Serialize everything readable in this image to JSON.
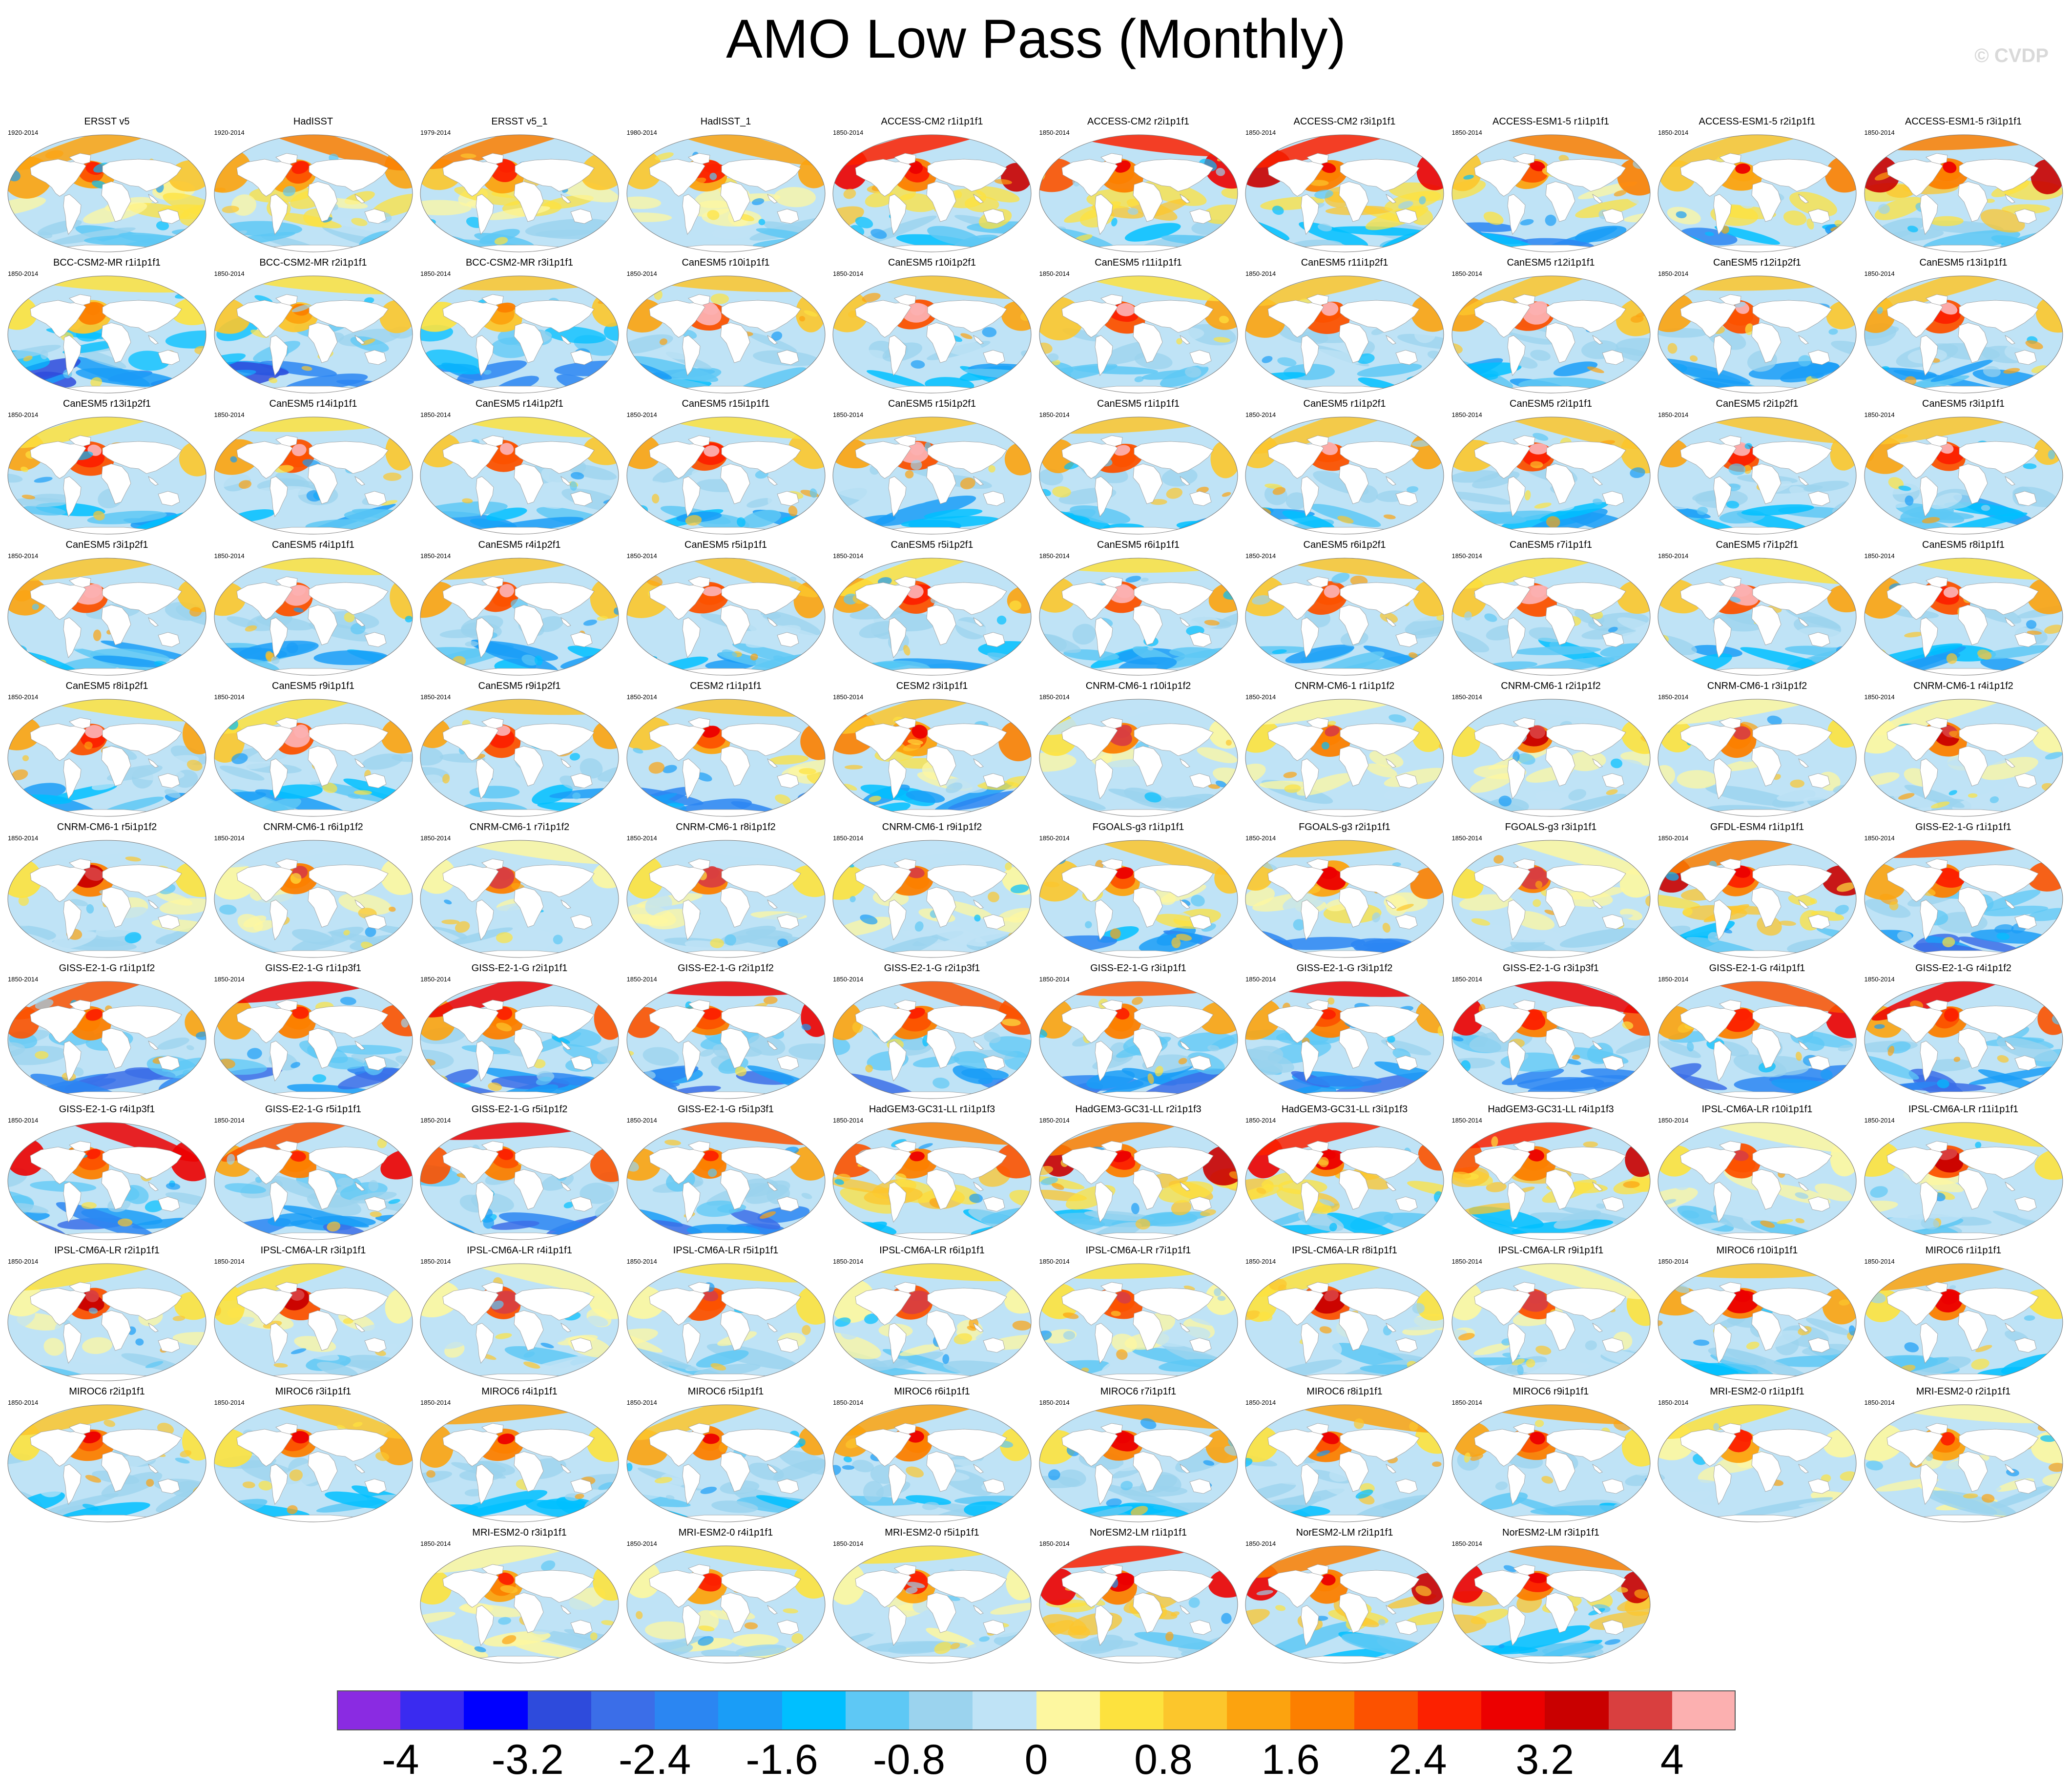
{
  "title": "AMO Low Pass (Monthly)",
  "credit": "© CVDP",
  "colors": {
    "ocean_base": "#bfe3f6",
    "land": "#ffffff",
    "coast": "#9a9a9a"
  },
  "colorbar": {
    "colors": [
      "#8a2be2",
      "#3a2bf0",
      "#0000ff",
      "#2e4bdc",
      "#3b6ee8",
      "#2b86f2",
      "#1a9df7",
      "#00bfff",
      "#5ec8f5",
      "#9bd3ee",
      "#bfe3f6",
      "#fdf7a0",
      "#fde23e",
      "#fcc62c",
      "#fca30f",
      "#fc7f00",
      "#fc5200",
      "#fc2100",
      "#ec0000",
      "#c90000",
      "#d93f3f",
      "#fcb0b0"
    ],
    "tick_labels": [
      "-4",
      "-3.2",
      "-2.4",
      "-1.6",
      "-0.8",
      "0",
      "0.8",
      "1.6",
      "2.4",
      "3.2",
      "4"
    ]
  },
  "panels": [
    {
      "title": "ERSST v5",
      "years": "1920-2014",
      "pattern": "obs"
    },
    {
      "title": "HadISST",
      "years": "1920-2014",
      "pattern": "obs"
    },
    {
      "title": "ERSST v5_1",
      "years": "1979-2014",
      "pattern": "obs"
    },
    {
      "title": "HadISST_1",
      "years": "1980-2014",
      "pattern": "obs"
    },
    {
      "title": "ACCESS-CM2 r1i1p1f1",
      "years": "1850-2014",
      "pattern": "warm"
    },
    {
      "title": "ACCESS-CM2 r2i1p1f1",
      "years": "1850-2014",
      "pattern": "warm"
    },
    {
      "title": "ACCESS-CM2 r3i1p1f1",
      "years": "1850-2014",
      "pattern": "warm"
    },
    {
      "title": "ACCESS-ESM1-5 r1i1p1f1",
      "years": "1850-2014",
      "pattern": "mixed"
    },
    {
      "title": "ACCESS-ESM1-5 r2i1p1f1",
      "years": "1850-2014",
      "pattern": "mixed"
    },
    {
      "title": "ACCESS-ESM1-5 r3i1p1f1",
      "years": "1850-2014",
      "pattern": "warm"
    },
    {
      "title": "BCC-CSM2-MR r1i1p1f1",
      "years": "1850-2014",
      "pattern": "cool"
    },
    {
      "title": "BCC-CSM2-MR r2i1p1f1",
      "years": "1850-2014",
      "pattern": "cool"
    },
    {
      "title": "BCC-CSM2-MR r3i1p1f1",
      "years": "1850-2014",
      "pattern": "cool"
    },
    {
      "title": "CanESM5 r10i1p1f1",
      "years": "1850-2014",
      "pattern": "canesm"
    },
    {
      "title": "CanESM5 r10i1p2f1",
      "years": "1850-2014",
      "pattern": "canesm"
    },
    {
      "title": "CanESM5 r11i1p1f1",
      "years": "1850-2014",
      "pattern": "canesm"
    },
    {
      "title": "CanESM5 r11i1p2f1",
      "years": "1850-2014",
      "pattern": "canesm"
    },
    {
      "title": "CanESM5 r12i1p1f1",
      "years": "1850-2014",
      "pattern": "canesm"
    },
    {
      "title": "CanESM5 r12i1p2f1",
      "years": "1850-2014",
      "pattern": "canesm"
    },
    {
      "title": "CanESM5 r13i1p1f1",
      "years": "1850-2014",
      "pattern": "canesm"
    },
    {
      "title": "CanESM5 r13i1p2f1",
      "years": "1850-2014",
      "pattern": "canesm"
    },
    {
      "title": "CanESM5 r14i1p1f1",
      "years": "1850-2014",
      "pattern": "canesm"
    },
    {
      "title": "CanESM5 r14i1p2f1",
      "years": "1850-2014",
      "pattern": "canesm"
    },
    {
      "title": "CanESM5 r15i1p1f1",
      "years": "1850-2014",
      "pattern": "canesm"
    },
    {
      "title": "CanESM5 r15i1p2f1",
      "years": "1850-2014",
      "pattern": "canesm"
    },
    {
      "title": "CanESM5 r1i1p1f1",
      "years": "1850-2014",
      "pattern": "canesm"
    },
    {
      "title": "CanESM5 r1i1p2f1",
      "years": "1850-2014",
      "pattern": "canesm"
    },
    {
      "title": "CanESM5 r2i1p1f1",
      "years": "1850-2014",
      "pattern": "canesm"
    },
    {
      "title": "CanESM5 r2i1p2f1",
      "years": "1850-2014",
      "pattern": "canesm"
    },
    {
      "title": "CanESM5 r3i1p1f1",
      "years": "1850-2014",
      "pattern": "canesm"
    },
    {
      "title": "CanESM5 r3i1p2f1",
      "years": "1850-2014",
      "pattern": "canesm"
    },
    {
      "title": "CanESM5 r4i1p1f1",
      "years": "1850-2014",
      "pattern": "canesm"
    },
    {
      "title": "CanESM5 r4i1p2f1",
      "years": "1850-2014",
      "pattern": "canesm"
    },
    {
      "title": "CanESM5 r5i1p1f1",
      "years": "1850-2014",
      "pattern": "canesm"
    },
    {
      "title": "CanESM5 r5i1p2f1",
      "years": "1850-2014",
      "pattern": "canesm"
    },
    {
      "title": "CanESM5 r6i1p1f1",
      "years": "1850-2014",
      "pattern": "canesm"
    },
    {
      "title": "CanESM5 r6i1p2f1",
      "years": "1850-2014",
      "pattern": "canesm"
    },
    {
      "title": "CanESM5 r7i1p1f1",
      "years": "1850-2014",
      "pattern": "canesm"
    },
    {
      "title": "CanESM5 r7i1p2f1",
      "years": "1850-2014",
      "pattern": "canesm"
    },
    {
      "title": "CanESM5 r8i1p1f1",
      "years": "1850-2014",
      "pattern": "canesm"
    },
    {
      "title": "CanESM5 r8i1p2f1",
      "years": "1850-2014",
      "pattern": "canesm"
    },
    {
      "title": "CanESM5 r9i1p1f1",
      "years": "1850-2014",
      "pattern": "canesm"
    },
    {
      "title": "CanESM5 r9i1p2f1",
      "years": "1850-2014",
      "pattern": "canesm"
    },
    {
      "title": "CESM2 r1i1p1f1",
      "years": "1850-2014",
      "pattern": "mixed"
    },
    {
      "title": "CESM2 r3i1p1f1",
      "years": "1850-2014",
      "pattern": "mixed"
    },
    {
      "title": "CNRM-CM6-1 r10i1p1f2",
      "years": "1850-2014",
      "pattern": "cnrm"
    },
    {
      "title": "CNRM-CM6-1 r1i1p1f2",
      "years": "1850-2014",
      "pattern": "cnrm"
    },
    {
      "title": "CNRM-CM6-1 r2i1p1f2",
      "years": "1850-2014",
      "pattern": "cnrm"
    },
    {
      "title": "CNRM-CM6-1 r3i1p1f2",
      "years": "1850-2014",
      "pattern": "cnrm"
    },
    {
      "title": "CNRM-CM6-1 r4i1p1f2",
      "years": "1850-2014",
      "pattern": "cnrm"
    },
    {
      "title": "CNRM-CM6-1 r5i1p1f2",
      "years": "1850-2014",
      "pattern": "cnrm"
    },
    {
      "title": "CNRM-CM6-1 r6i1p1f2",
      "years": "1850-2014",
      "pattern": "cnrm"
    },
    {
      "title": "CNRM-CM6-1 r7i1p1f2",
      "years": "1850-2014",
      "pattern": "cnrm"
    },
    {
      "title": "CNRM-CM6-1 r8i1p1f2",
      "years": "1850-2014",
      "pattern": "cnrm"
    },
    {
      "title": "CNRM-CM6-1 r9i1p1f2",
      "years": "1850-2014",
      "pattern": "cnrm"
    },
    {
      "title": "FGOALS-g3 r1i1p1f1",
      "years": "1850-2014",
      "pattern": "mixed"
    },
    {
      "title": "FGOALS-g3 r2i1p1f1",
      "years": "1850-2014",
      "pattern": "mixed"
    },
    {
      "title": "FGOALS-g3 r3i1p1f1",
      "years": "1850-2014",
      "pattern": "cnrm"
    },
    {
      "title": "GFDL-ESM4 r1i1p1f1",
      "years": "1850-2014",
      "pattern": "warm"
    },
    {
      "title": "GISS-E2-1-G r1i1p1f1",
      "years": "1850-2014",
      "pattern": "giss"
    },
    {
      "title": "GISS-E2-1-G r1i1p1f2",
      "years": "1850-2014",
      "pattern": "giss"
    },
    {
      "title": "GISS-E2-1-G r1i1p3f1",
      "years": "1850-2014",
      "pattern": "giss"
    },
    {
      "title": "GISS-E2-1-G r2i1p1f1",
      "years": "1850-2014",
      "pattern": "giss"
    },
    {
      "title": "GISS-E2-1-G r2i1p1f2",
      "years": "1850-2014",
      "pattern": "giss"
    },
    {
      "title": "GISS-E2-1-G r2i1p3f1",
      "years": "1850-2014",
      "pattern": "giss"
    },
    {
      "title": "GISS-E2-1-G r3i1p1f1",
      "years": "1850-2014",
      "pattern": "giss"
    },
    {
      "title": "GISS-E2-1-G r3i1p1f2",
      "years": "1850-2014",
      "pattern": "giss"
    },
    {
      "title": "GISS-E2-1-G r3i1p3f1",
      "years": "1850-2014",
      "pattern": "giss"
    },
    {
      "title": "GISS-E2-1-G r4i1p1f1",
      "years": "1850-2014",
      "pattern": "giss"
    },
    {
      "title": "GISS-E2-1-G r4i1p1f2",
      "years": "1850-2014",
      "pattern": "giss"
    },
    {
      "title": "GISS-E2-1-G r4i1p3f1",
      "years": "1850-2014",
      "pattern": "giss"
    },
    {
      "title": "GISS-E2-1-G r5i1p1f1",
      "years": "1850-2014",
      "pattern": "giss"
    },
    {
      "title": "GISS-E2-1-G r5i1p1f2",
      "years": "1850-2014",
      "pattern": "giss"
    },
    {
      "title": "GISS-E2-1-G r5i1p3f1",
      "years": "1850-2014",
      "pattern": "giss"
    },
    {
      "title": "HadGEM3-GC31-LL r1i1p1f3",
      "years": "1850-2014",
      "pattern": "warm"
    },
    {
      "title": "HadGEM3-GC31-LL r2i1p1f3",
      "years": "1850-2014",
      "pattern": "warm"
    },
    {
      "title": "HadGEM3-GC31-LL r3i1p1f3",
      "years": "1850-2014",
      "pattern": "warm"
    },
    {
      "title": "HadGEM3-GC31-LL r4i1p1f3",
      "years": "1850-2014",
      "pattern": "warm"
    },
    {
      "title": "IPSL-CM6A-LR r10i1p1f1",
      "years": "1850-2014",
      "pattern": "ipsl"
    },
    {
      "title": "IPSL-CM6A-LR r11i1p1f1",
      "years": "1850-2014",
      "pattern": "ipsl"
    },
    {
      "title": "IPSL-CM6A-LR r2i1p1f1",
      "years": "1850-2014",
      "pattern": "ipsl"
    },
    {
      "title": "IPSL-CM6A-LR r3i1p1f1",
      "years": "1850-2014",
      "pattern": "ipsl"
    },
    {
      "title": "IPSL-CM6A-LR r4i1p1f1",
      "years": "1850-2014",
      "pattern": "ipsl"
    },
    {
      "title": "IPSL-CM6A-LR r5i1p1f1",
      "years": "1850-2014",
      "pattern": "ipsl"
    },
    {
      "title": "IPSL-CM6A-LR r6i1p1f1",
      "years": "1850-2014",
      "pattern": "ipsl"
    },
    {
      "title": "IPSL-CM6A-LR r7i1p1f1",
      "years": "1850-2014",
      "pattern": "ipsl"
    },
    {
      "title": "IPSL-CM6A-LR r8i1p1f1",
      "years": "1850-2014",
      "pattern": "ipsl"
    },
    {
      "title": "IPSL-CM6A-LR r9i1p1f1",
      "years": "1850-2014",
      "pattern": "ipsl"
    },
    {
      "title": "MIROC6 r10i1p1f1",
      "years": "1850-2014",
      "pattern": "miroc"
    },
    {
      "title": "MIROC6 r1i1p1f1",
      "years": "1850-2014",
      "pattern": "miroc"
    },
    {
      "title": "MIROC6 r2i1p1f1",
      "years": "1850-2014",
      "pattern": "miroc"
    },
    {
      "title": "MIROC6 r3i1p1f1",
      "years": "1850-2014",
      "pattern": "miroc"
    },
    {
      "title": "MIROC6 r4i1p1f1",
      "years": "1850-2014",
      "pattern": "miroc"
    },
    {
      "title": "MIROC6 r5i1p1f1",
      "years": "1850-2014",
      "pattern": "miroc"
    },
    {
      "title": "MIROC6 r6i1p1f1",
      "years": "1850-2014",
      "pattern": "miroc"
    },
    {
      "title": "MIROC6 r7i1p1f1",
      "years": "1850-2014",
      "pattern": "miroc"
    },
    {
      "title": "MIROC6 r8i1p1f1",
      "years": "1850-2014",
      "pattern": "miroc"
    },
    {
      "title": "MIROC6 r9i1p1f1",
      "years": "1850-2014",
      "pattern": "miroc"
    },
    {
      "title": "MRI-ESM2-0 r1i1p1f1",
      "years": "1850-2014",
      "pattern": "mri"
    },
    {
      "title": "MRI-ESM2-0 r2i1p1f1",
      "years": "1850-2014",
      "pattern": "mri"
    },
    {
      "title": "MRI-ESM2-0 r3i1p1f1",
      "years": "1850-2014",
      "pattern": "mri"
    },
    {
      "title": "MRI-ESM2-0 r4i1p1f1",
      "years": "1850-2014",
      "pattern": "mri"
    },
    {
      "title": "MRI-ESM2-0 r5i1p1f1",
      "years": "1850-2014",
      "pattern": "mri"
    },
    {
      "title": "NorESM2-LM r1i1p1f1",
      "years": "1850-2014",
      "pattern": "warm"
    },
    {
      "title": "NorESM2-LM r2i1p1f1",
      "years": "1850-2014",
      "pattern": "warm"
    },
    {
      "title": "NorESM2-LM r3i1p1f1",
      "years": "1850-2014",
      "pattern": "warm"
    }
  ]
}
